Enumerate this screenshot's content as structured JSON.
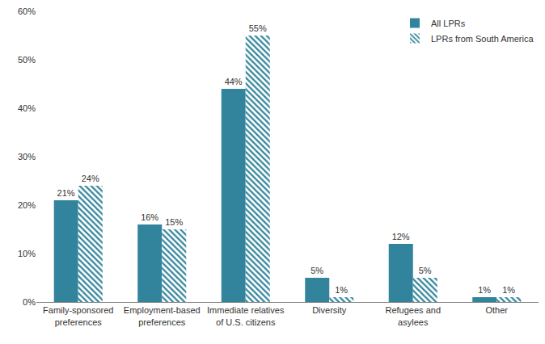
{
  "chart_data": {
    "type": "bar",
    "categories": [
      "Family-sponsored preferences",
      "Employment-based preferences",
      "Immediate relatives of U.S. citizens",
      "Diversity",
      "Refugees and asylees",
      "Other"
    ],
    "series": [
      {
        "name": "All LPRs",
        "color": "#31849b",
        "marker": "solid",
        "values": [
          21,
          16,
          44,
          5,
          12,
          1
        ],
        "value_labels": [
          "21%",
          "16%",
          "44%",
          "5%",
          "12%",
          "1%"
        ]
      },
      {
        "name": "LPRs from South America",
        "color": "#31849b",
        "marker": "hatch",
        "values": [
          24,
          15,
          55,
          1,
          5,
          1
        ],
        "value_labels": [
          "24%",
          "15%",
          "55%",
          "1%",
          "5%",
          "1%"
        ]
      }
    ],
    "ylim": [
      0,
      60
    ],
    "yticks": [
      {
        "value": 0,
        "label": "0%"
      },
      {
        "value": 10,
        "label": "10%"
      },
      {
        "value": 20,
        "label": "20%"
      },
      {
        "value": 30,
        "label": "30%"
      },
      {
        "value": 40,
        "label": "40%"
      },
      {
        "value": 50,
        "label": "50%"
      },
      {
        "value": 60,
        "label": "60%"
      }
    ],
    "grid": false,
    "legend": "top right",
    "data_labels": true
  }
}
